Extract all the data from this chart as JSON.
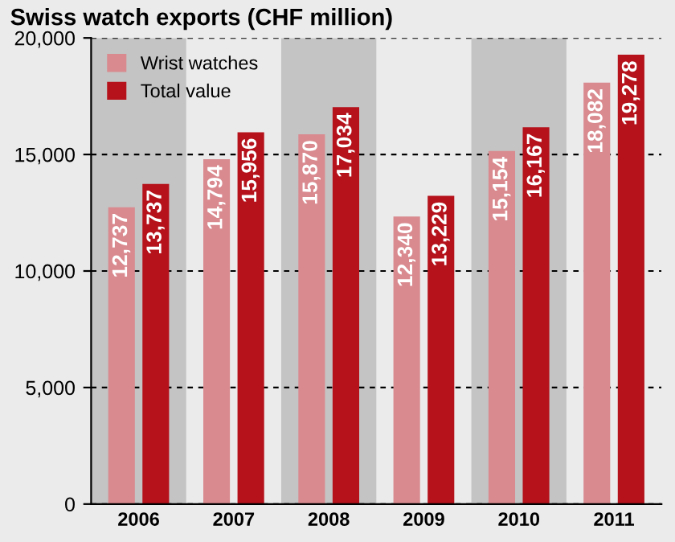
{
  "chart_data": {
    "type": "bar",
    "title": "Swiss watch exports (CHF million)",
    "categories": [
      "2006",
      "2007",
      "2008",
      "2009",
      "2010",
      "2011"
    ],
    "series": [
      {
        "name": "Wrist watches",
        "color": "#d98a8f",
        "values": [
          12737,
          14794,
          15870,
          12340,
          15154,
          18082
        ],
        "value_labels": [
          "12,737",
          "14,794",
          "15,870",
          "12,340",
          "15,154",
          "18,082"
        ]
      },
      {
        "name": "Total value",
        "color": "#b5121b",
        "values": [
          13737,
          15956,
          17034,
          13229,
          16167,
          19278
        ],
        "value_labels": [
          "13,737",
          "15,956",
          "17,034",
          "13,229",
          "16,167",
          "19,278"
        ]
      }
    ],
    "ylim": [
      0,
      20000
    ],
    "yticks": [
      0,
      {
        "value": 5000,
        "label": "5,000"
      },
      {
        "value": 10000,
        "label": "10,000"
      },
      {
        "value": 15000,
        "label": "15,000"
      },
      {
        "value": 20000,
        "label": "20,000"
      }
    ],
    "grid": "y",
    "legend": "top left",
    "bands": [
      {
        "axis": "x",
        "from": "2006",
        "to": "2006",
        "color": "#c4c4c4"
      },
      {
        "axis": "x",
        "from": "2008",
        "to": "2008",
        "color": "#c4c4c4"
      },
      {
        "axis": "x",
        "from": "2010",
        "to": "2010",
        "color": "#c4c4c4"
      }
    ]
  }
}
